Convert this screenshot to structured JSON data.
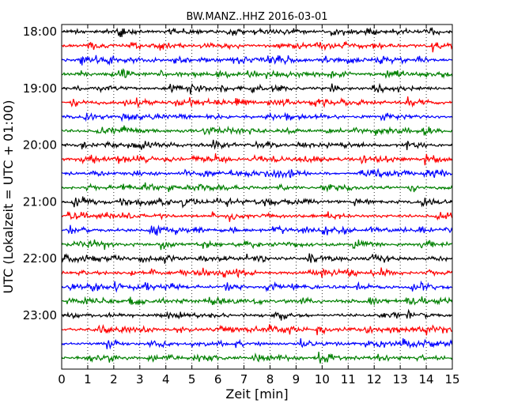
{
  "chart_data": {
    "type": "line",
    "title": "BW.MANZ..HHZ 2016-03-01",
    "xlabel": "Zeit  [min]",
    "ylabel": "UTC (Lokalzeit = UTC + 01:00)",
    "xlim": [
      0,
      15
    ],
    "x_ticks": [
      "0",
      "1",
      "2",
      "3",
      "4",
      "5",
      "6",
      "7",
      "8",
      "9",
      "10",
      "11",
      "12",
      "13",
      "14",
      "15"
    ],
    "y_ticks": [
      "18:00",
      "19:00",
      "20:00",
      "21:00",
      "22:00",
      "23:00"
    ],
    "grid": "vertical dotted at each minute",
    "trace_colors": [
      "#000000",
      "#ff0000",
      "#0000ff",
      "#008000"
    ],
    "traces_per_hour": 4,
    "minutes_per_trace": 15,
    "series": [
      {
        "start": "18:00",
        "color": "#000000"
      },
      {
        "start": "18:15",
        "color": "#ff0000"
      },
      {
        "start": "18:30",
        "color": "#0000ff"
      },
      {
        "start": "18:45",
        "color": "#008000"
      },
      {
        "start": "19:00",
        "color": "#000000"
      },
      {
        "start": "19:15",
        "color": "#ff0000"
      },
      {
        "start": "19:30",
        "color": "#0000ff"
      },
      {
        "start": "19:45",
        "color": "#008000"
      },
      {
        "start": "20:00",
        "color": "#000000"
      },
      {
        "start": "20:15",
        "color": "#ff0000"
      },
      {
        "start": "20:30",
        "color": "#0000ff"
      },
      {
        "start": "20:45",
        "color": "#008000"
      },
      {
        "start": "21:00",
        "color": "#000000"
      },
      {
        "start": "21:15",
        "color": "#ff0000"
      },
      {
        "start": "21:30",
        "color": "#0000ff"
      },
      {
        "start": "21:45",
        "color": "#008000"
      },
      {
        "start": "22:00",
        "color": "#000000"
      },
      {
        "start": "22:15",
        "color": "#ff0000"
      },
      {
        "start": "22:30",
        "color": "#0000ff"
      },
      {
        "start": "22:45",
        "color": "#008000"
      },
      {
        "start": "23:00",
        "color": "#000000"
      },
      {
        "start": "23:15",
        "color": "#ff0000"
      },
      {
        "start": "23:30",
        "color": "#0000ff"
      },
      {
        "start": "23:45",
        "color": "#008000"
      }
    ]
  }
}
